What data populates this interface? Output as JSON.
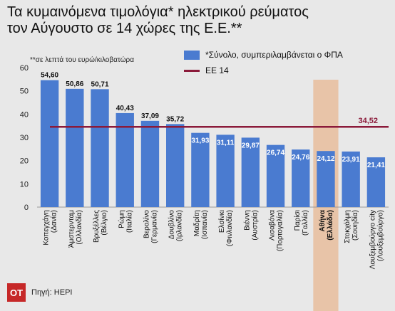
{
  "title_line1": "Τα κυμαινόμενα τιμολόγια* ηλεκτρικού ρεύματος",
  "title_line2": "τον Αύγουστο σε 14 χώρες της Ε.Ε.**",
  "note": "**σε λεπτά του ευρώ/κιλοβατώρα",
  "legend_bar": "*Σύνολο, συμπεριλαμβάνεται ο ΦΠΑ",
  "legend_line": "ΕΕ 14",
  "logo": "OT",
  "source": "Πηγή: HEPI",
  "colors": {
    "bar": "#4a7bd0",
    "line": "#8b1a3a",
    "highlight": "#e8c4a8"
  },
  "chart_data": {
    "type": "bar",
    "categories": [
      [
        "Κοπεγχάγη",
        "(Δανία)"
      ],
      [
        "Άμστερνταμ",
        "(Ολλανδία)"
      ],
      [
        "Βρυξέλλες",
        "(Βέλγιο)"
      ],
      [
        "Ρώμη",
        "(Ιταλία)"
      ],
      [
        "Βερολίνο",
        "(Γερμανία)"
      ],
      [
        "Δουβλίνο",
        "(Ιρλανδία)"
      ],
      [
        "Μαδρίτη",
        "(Ισπανία)"
      ],
      [
        "Ελσίνκι",
        "(Φινλανδία)"
      ],
      [
        "Βιέννη",
        "(Αυστρία)"
      ],
      [
        "Λισαβόνα",
        "(Πορτογαλία)"
      ],
      [
        "Παρίσι",
        "(Γαλλία)"
      ],
      [
        "Αθήνα",
        "(Ελλάδα)"
      ],
      [
        "Στοκχόλμη",
        "(Σουηδία)"
      ],
      [
        "Λουξεμβούργο city",
        "(Λουξεμβούργο)"
      ]
    ],
    "values": [
      54.6,
      50.86,
      50.71,
      40.43,
      37.09,
      35.72,
      31.93,
      31.11,
      29.87,
      26.74,
      24.76,
      24.12,
      23.91,
      21.41
    ],
    "value_labels": [
      "54,60",
      "50,86",
      "50,71",
      "40,43",
      "37,09",
      "35,72",
      "31,93",
      "31,11",
      "29,87",
      "26,74",
      "24,76",
      "24,12",
      "23,91",
      "21,41"
    ],
    "highlight_index": 11,
    "reference_line": {
      "name": "ΕΕ 14",
      "value": 34.52,
      "label": "34,52"
    },
    "ylim": [
      0,
      60
    ],
    "yticks": [
      0,
      10,
      20,
      30,
      40,
      50,
      60
    ],
    "ytick_labels": [
      "0",
      "10",
      "20",
      "30",
      "40",
      "50",
      "60"
    ],
    "grid": false
  }
}
